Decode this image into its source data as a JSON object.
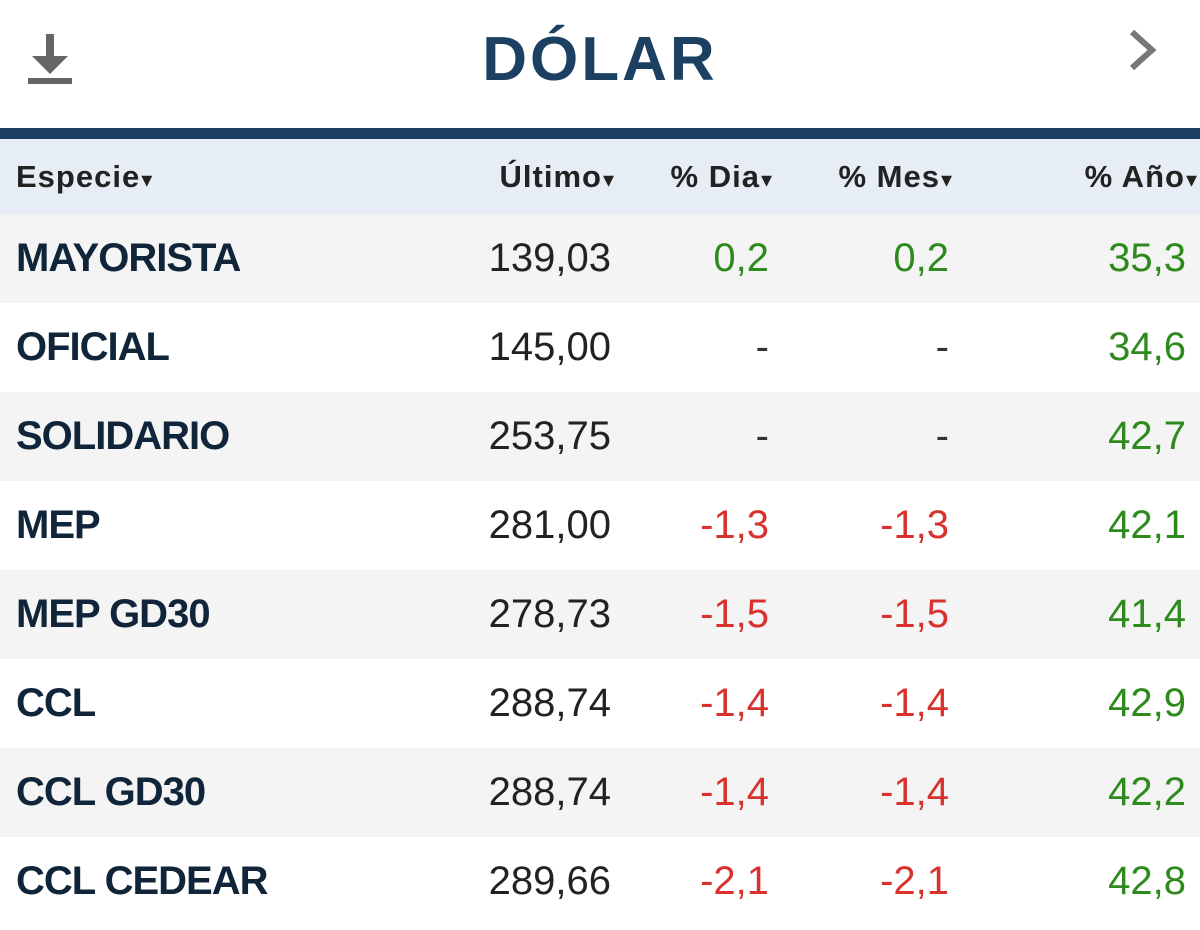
{
  "header": {
    "title": "DÓLAR",
    "download_icon": "download-icon",
    "next_icon": "chevron-right-icon"
  },
  "columns": [
    "Especie",
    "Último",
    "% Dia",
    "% Mes",
    "% Año"
  ],
  "sort_glyph": "▾",
  "colors": {
    "accent": "#1b4061",
    "positive": "#2f8a1e",
    "negative": "#d9322e",
    "header_bg": "#e6edf5"
  },
  "rows": [
    {
      "name": "MAYORISTA",
      "last": "139,03",
      "day": "0,2",
      "month": "0,2",
      "year": "35,3",
      "day_trend": "pos",
      "month_trend": "pos",
      "year_trend": "pos"
    },
    {
      "name": "OFICIAL",
      "last": "145,00",
      "day": "-",
      "month": "-",
      "year": "34,6",
      "day_trend": "neu",
      "month_trend": "neu",
      "year_trend": "pos"
    },
    {
      "name": "SOLIDARIO",
      "last": "253,75",
      "day": "-",
      "month": "-",
      "year": "42,7",
      "day_trend": "neu",
      "month_trend": "neu",
      "year_trend": "pos"
    },
    {
      "name": "MEP",
      "last": "281,00",
      "day": "-1,3",
      "month": "-1,3",
      "year": "42,1",
      "day_trend": "neg",
      "month_trend": "neg",
      "year_trend": "pos"
    },
    {
      "name": "MEP GD30",
      "last": "278,73",
      "day": "-1,5",
      "month": "-1,5",
      "year": "41,4",
      "day_trend": "neg",
      "month_trend": "neg",
      "year_trend": "pos"
    },
    {
      "name": "CCL",
      "last": "288,74",
      "day": "-1,4",
      "month": "-1,4",
      "year": "42,9",
      "day_trend": "neg",
      "month_trend": "neg",
      "year_trend": "pos"
    },
    {
      "name": "CCL GD30",
      "last": "288,74",
      "day": "-1,4",
      "month": "-1,4",
      "year": "42,2",
      "day_trend": "neg",
      "month_trend": "neg",
      "year_trend": "pos"
    },
    {
      "name": "CCL CEDEAR",
      "last": "289,66",
      "day": "-2,1",
      "month": "-2,1",
      "year": "42,8",
      "day_trend": "neg",
      "month_trend": "neg",
      "year_trend": "pos"
    }
  ]
}
